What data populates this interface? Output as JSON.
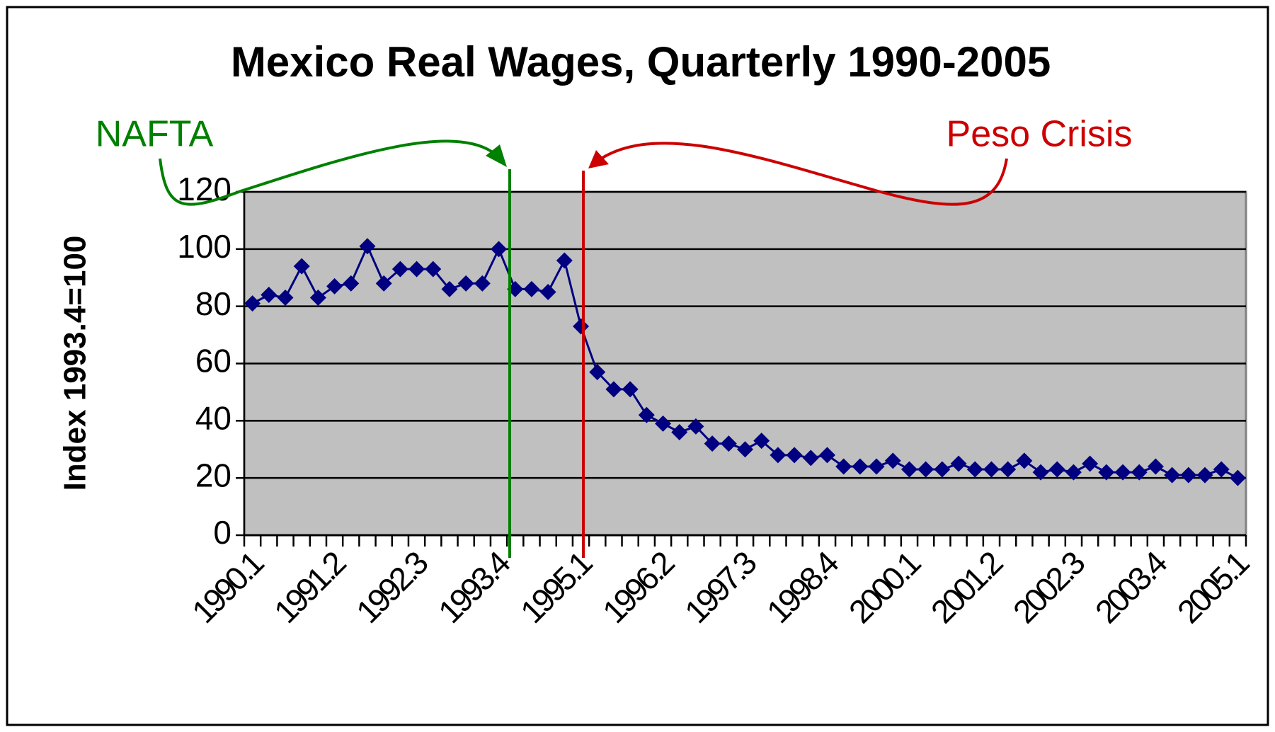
{
  "chart_data": {
    "type": "line",
    "title": "Mexico Real Wages, Quarterly 1990-2005",
    "y_label": "Index 1993.4=100",
    "annotations": [
      "NAFTA",
      "Peso Crisis"
    ],
    "categories": [
      "1990.1",
      null,
      null,
      null,
      null,
      "1991.2",
      null,
      null,
      null,
      null,
      "1992.3",
      null,
      null,
      null,
      null,
      "1993.4",
      null,
      null,
      null,
      null,
      "1995.1",
      null,
      null,
      null,
      null,
      "1996.2",
      null,
      null,
      null,
      null,
      "1997.3",
      null,
      null,
      null,
      null,
      "1998.4",
      null,
      null,
      null,
      null,
      "2000.1",
      null,
      null,
      null,
      null,
      "2001.2",
      null,
      null,
      null,
      null,
      "2002.3",
      null,
      null,
      null,
      null,
      "2003.4",
      null,
      null,
      null,
      null,
      "2005.1"
    ],
    "series": [
      {
        "name": "Real wages",
        "color": "#000080",
        "values": [
          81,
          84,
          83,
          94,
          83,
          87,
          88,
          101,
          88,
          93,
          93,
          93,
          86,
          88,
          88,
          100,
          86,
          86,
          85,
          96,
          73,
          57,
          51,
          51,
          42,
          39,
          36,
          38,
          32,
          32,
          30,
          33,
          28,
          28,
          27,
          28,
          24,
          24,
          24,
          26,
          23,
          23,
          23,
          25,
          23,
          23,
          23,
          26,
          22,
          23,
          22,
          25,
          22,
          22,
          22,
          24,
          21,
          21,
          21,
          23,
          20
        ]
      }
    ],
    "ylim": [
      0,
      120
    ],
    "yticks": [
      0,
      20,
      40,
      60,
      80,
      100,
      120
    ],
    "grid": true,
    "plot_background": "#c0c0c0"
  }
}
